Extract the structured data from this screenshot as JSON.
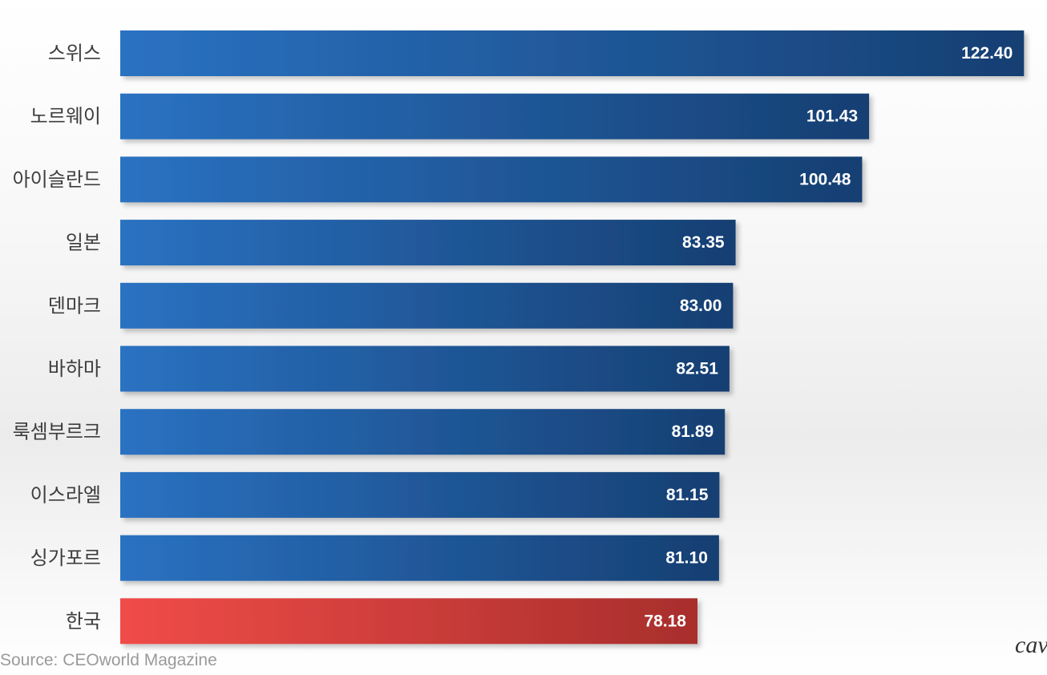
{
  "chart_data": {
    "type": "bar",
    "orientation": "horizontal",
    "title": "",
    "xlabel": "",
    "ylabel": "",
    "categories": [
      "스위스",
      "노르웨이",
      "아이슬란드",
      "일본",
      "덴마크",
      "바하마",
      "룩셈부르크",
      "이스라엘",
      "싱가포르",
      "한국"
    ],
    "values": [
      122.4,
      101.43,
      100.48,
      83.35,
      83.0,
      82.51,
      81.89,
      81.15,
      81.1,
      78.18
    ],
    "value_labels": [
      "122.40",
      "101.43",
      "100.48",
      "83.35",
      "83.00",
      "82.51",
      "81.89",
      "81.15",
      "81.10",
      "78.18"
    ],
    "highlight_category": "한국",
    "xlim": [
      0,
      124
    ],
    "grid": false,
    "legend": "none",
    "colors": {
      "bar": "#1f5ea8",
      "bar_dark": "#143d70",
      "highlight": "#e8423f",
      "highlight_dark": "#a82d2b"
    }
  },
  "footer": {
    "source": "Source: CEOworld Magazine",
    "watermark": "cav"
  }
}
